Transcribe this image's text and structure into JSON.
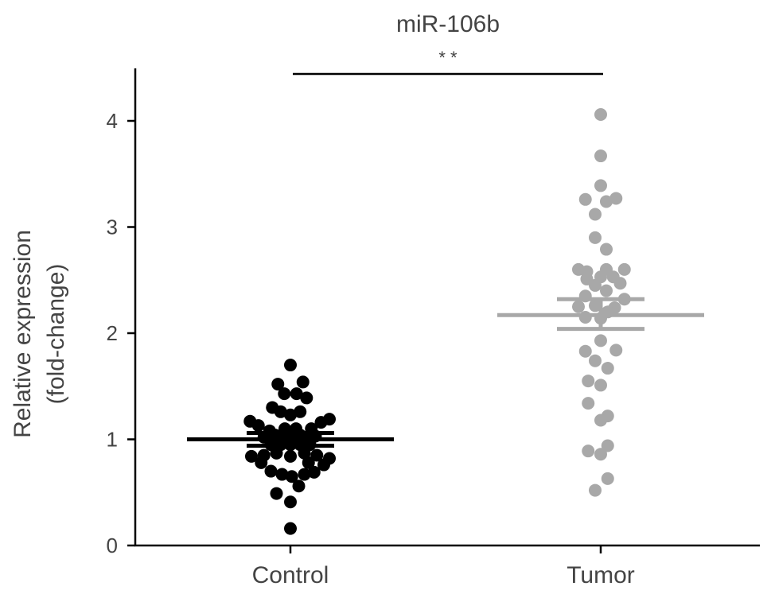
{
  "chart_data": {
    "type": "scatter",
    "title": "miR-106b",
    "xlabel": "",
    "ylabel_lines": [
      "Relative expression",
      "(fold-change)"
    ],
    "categories": [
      "Control",
      "Tumor"
    ],
    "ylim": [
      0,
      4.5
    ],
    "yticks": [
      0,
      1,
      2,
      3,
      4
    ],
    "grid": false,
    "significance": {
      "label": "* *",
      "from": "Control",
      "to": "Tumor"
    },
    "series": [
      {
        "category": "Control",
        "color": "#000000",
        "mean": 1.0,
        "sem": [
          0.94,
          1.06
        ],
        "points": [
          {
            "offset": 0.0,
            "value": 1.7
          },
          {
            "offset": -0.45,
            "value": 1.52
          },
          {
            "offset": 0.45,
            "value": 1.54
          },
          {
            "offset": -0.22,
            "value": 1.43
          },
          {
            "offset": 0.22,
            "value": 1.43
          },
          {
            "offset": 0.58,
            "value": 1.39
          },
          {
            "offset": -0.65,
            "value": 1.3
          },
          {
            "offset": -0.35,
            "value": 1.26
          },
          {
            "offset": 0.0,
            "value": 1.23
          },
          {
            "offset": 0.35,
            "value": 1.26
          },
          {
            "offset": -1.45,
            "value": 1.17
          },
          {
            "offset": -1.15,
            "value": 1.13
          },
          {
            "offset": -0.75,
            "value": 1.08
          },
          {
            "offset": -0.2,
            "value": 1.1
          },
          {
            "offset": 0.2,
            "value": 1.1
          },
          {
            "offset": 0.75,
            "value": 1.1
          },
          {
            "offset": 1.1,
            "value": 1.16
          },
          {
            "offset": 1.4,
            "value": 1.19
          },
          {
            "offset": -0.95,
            "value": 1.02
          },
          {
            "offset": -0.55,
            "value": 1.04
          },
          {
            "offset": -0.25,
            "value": 1.04
          },
          {
            "offset": 0.05,
            "value": 1.03
          },
          {
            "offset": 0.35,
            "value": 1.04
          },
          {
            "offset": 0.65,
            "value": 1.03
          },
          {
            "offset": 0.9,
            "value": 1.03
          },
          {
            "offset": -0.7,
            "value": 0.95
          },
          {
            "offset": -0.35,
            "value": 0.95
          },
          {
            "offset": 0.0,
            "value": 0.95
          },
          {
            "offset": 0.35,
            "value": 0.95
          },
          {
            "offset": 0.7,
            "value": 0.95
          },
          {
            "offset": -1.4,
            "value": 0.84
          },
          {
            "offset": -0.95,
            "value": 0.85
          },
          {
            "offset": -0.5,
            "value": 0.87
          },
          {
            "offset": 0.0,
            "value": 0.84
          },
          {
            "offset": 0.5,
            "value": 0.87
          },
          {
            "offset": 0.95,
            "value": 0.85
          },
          {
            "offset": 1.4,
            "value": 0.82
          },
          {
            "offset": -1.05,
            "value": 0.78
          },
          {
            "offset": 0.65,
            "value": 0.78
          },
          {
            "offset": 1.2,
            "value": 0.76
          },
          {
            "offset": -0.7,
            "value": 0.7
          },
          {
            "offset": -0.3,
            "value": 0.67
          },
          {
            "offset": 0.05,
            "value": 0.65
          },
          {
            "offset": 0.5,
            "value": 0.67
          },
          {
            "offset": 0.85,
            "value": 0.69
          },
          {
            "offset": -0.5,
            "value": 0.49
          },
          {
            "offset": 0.3,
            "value": 0.56
          },
          {
            "offset": 0.0,
            "value": 0.41
          },
          {
            "offset": 0.0,
            "value": 0.16
          }
        ]
      },
      {
        "category": "Tumor",
        "color": "#a8a8a8",
        "mean": 2.17,
        "sem": [
          2.04,
          2.32
        ],
        "points": [
          {
            "offset": 0.0,
            "value": 4.06
          },
          {
            "offset": 0.0,
            "value": 3.67
          },
          {
            "offset": 0.0,
            "value": 3.39
          },
          {
            "offset": -0.55,
            "value": 3.26
          },
          {
            "offset": 0.2,
            "value": 3.24
          },
          {
            "offset": 0.55,
            "value": 3.27
          },
          {
            "offset": -0.2,
            "value": 3.12
          },
          {
            "offset": -0.2,
            "value": 2.9
          },
          {
            "offset": 0.2,
            "value": 2.79
          },
          {
            "offset": -0.8,
            "value": 2.6
          },
          {
            "offset": -0.5,
            "value": 2.58
          },
          {
            "offset": 0.2,
            "value": 2.6
          },
          {
            "offset": 0.85,
            "value": 2.6
          },
          {
            "offset": -0.5,
            "value": 2.51
          },
          {
            "offset": -0.2,
            "value": 2.45
          },
          {
            "offset": 0.0,
            "value": 2.53
          },
          {
            "offset": 0.45,
            "value": 2.53
          },
          {
            "offset": 0.7,
            "value": 2.47
          },
          {
            "offset": -0.55,
            "value": 2.35
          },
          {
            "offset": 0.2,
            "value": 2.4
          },
          {
            "offset": 0.85,
            "value": 2.32
          },
          {
            "offset": -0.8,
            "value": 2.25
          },
          {
            "offset": -0.2,
            "value": 2.26
          },
          {
            "offset": 0.5,
            "value": 2.24
          },
          {
            "offset": -0.55,
            "value": 2.15
          },
          {
            "offset": 0.0,
            "value": 2.14
          },
          {
            "offset": 0.25,
            "value": 2.2
          },
          {
            "offset": 0.0,
            "value": 1.93
          },
          {
            "offset": -0.55,
            "value": 1.83
          },
          {
            "offset": 0.55,
            "value": 1.84
          },
          {
            "offset": -0.2,
            "value": 1.74
          },
          {
            "offset": 0.25,
            "value": 1.67
          },
          {
            "offset": -0.45,
            "value": 1.55
          },
          {
            "offset": 0.0,
            "value": 1.51
          },
          {
            "offset": -0.45,
            "value": 1.34
          },
          {
            "offset": 0.25,
            "value": 1.22
          },
          {
            "offset": 0.0,
            "value": 1.18
          },
          {
            "offset": 0.25,
            "value": 0.94
          },
          {
            "offset": -0.45,
            "value": 0.89
          },
          {
            "offset": 0.0,
            "value": 0.86
          },
          {
            "offset": 0.25,
            "value": 0.63
          },
          {
            "offset": -0.2,
            "value": 0.52
          }
        ]
      }
    ]
  }
}
